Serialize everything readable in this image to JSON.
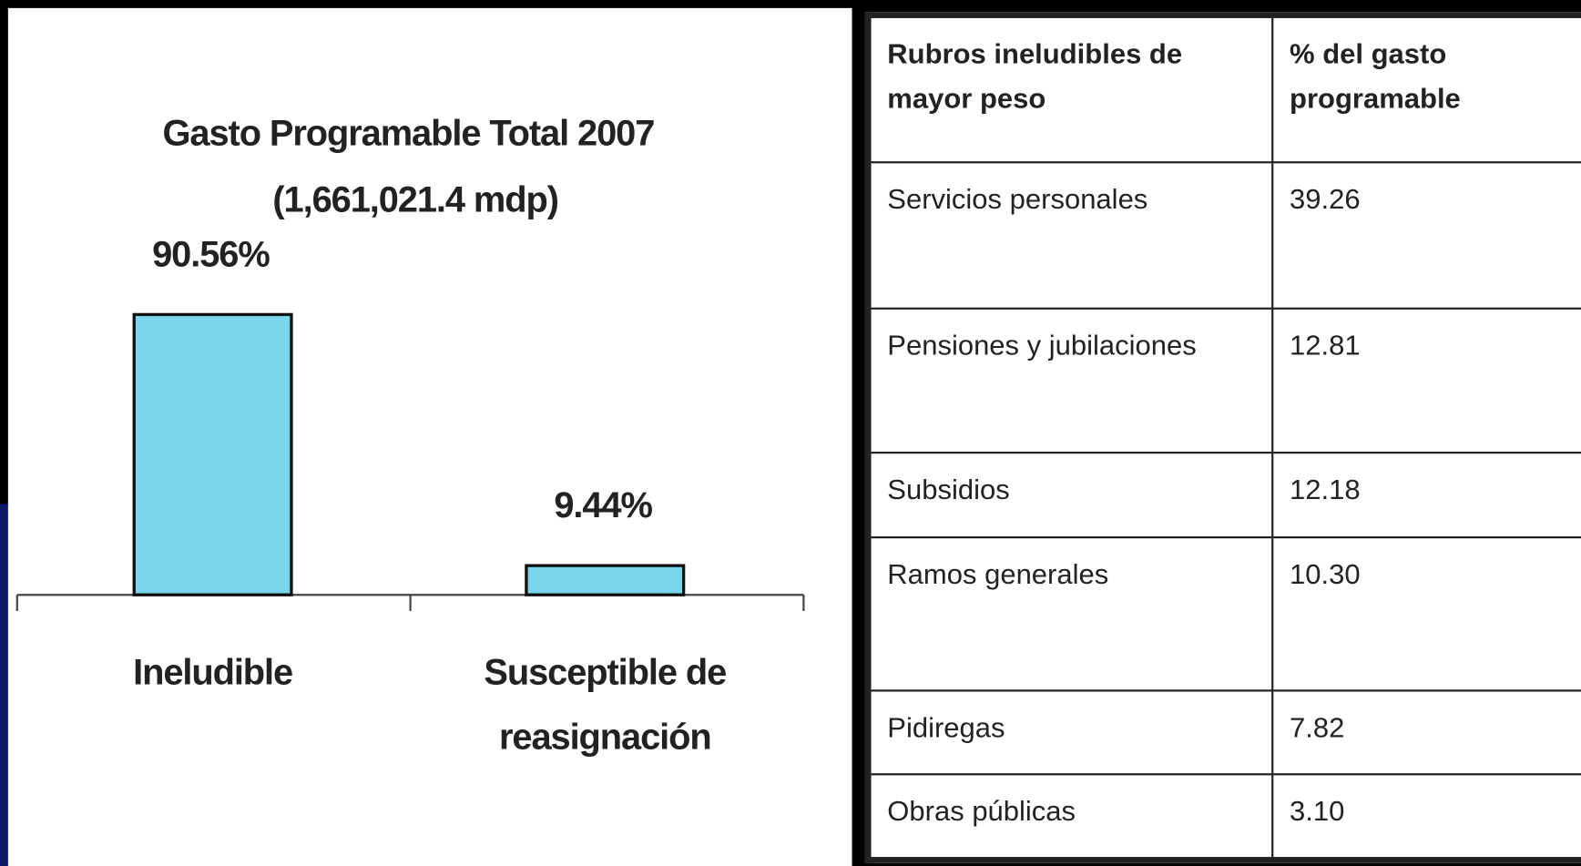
{
  "chart_data": {
    "type": "bar",
    "title": "Gasto Programable Total 2007",
    "subtitle": "(1,661,021.4 mdp)",
    "categories": [
      "Ineludible",
      "Susceptible de reasignación"
    ],
    "values": [
      90.56,
      9.44
    ],
    "value_labels": [
      "90.56%",
      "9.44%"
    ],
    "color": "#79d6ec"
  },
  "table": {
    "header": [
      "Rubros ineludibles de mayor peso",
      "% del gasto programable"
    ],
    "rows": [
      [
        "Servicios personales",
        "39.26"
      ],
      [
        "Pensiones y jubilaciones",
        "12.81"
      ],
      [
        "Subsidios",
        "12.18"
      ],
      [
        "Ramos generales",
        "10.30"
      ],
      [
        "Pidiregas",
        "7.82"
      ],
      [
        "Obras públicas",
        "3.10"
      ]
    ]
  }
}
